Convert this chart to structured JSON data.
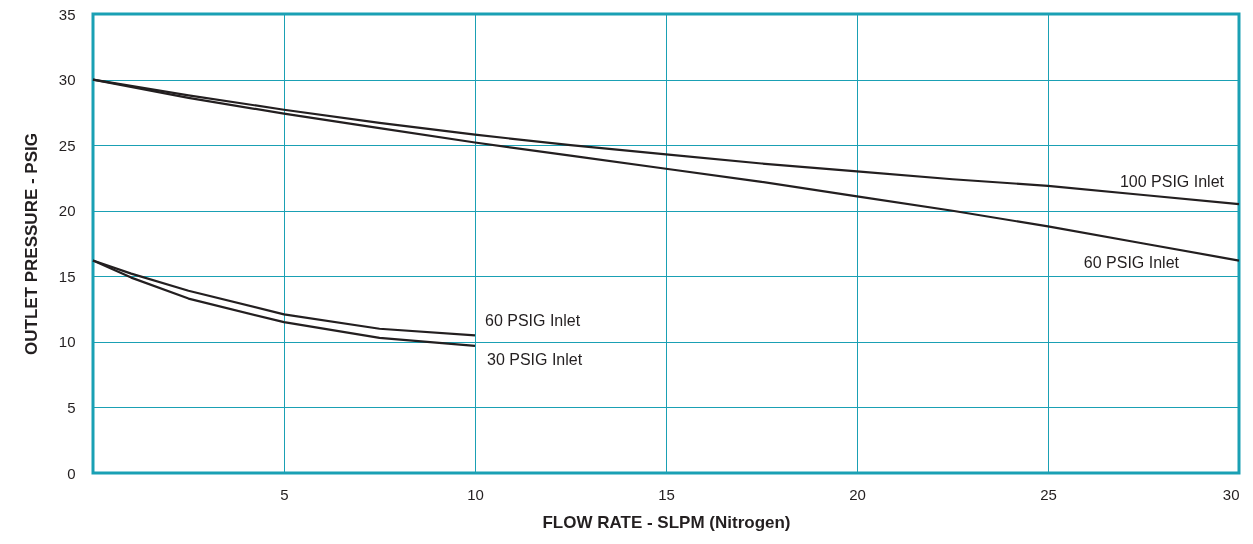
{
  "chart_data": {
    "type": "line",
    "xlabel": "FLOW RATE - SLPM (Nitrogen)",
    "ylabel": "OUTLET PRESSURE - PSIG",
    "xlim": [
      0,
      30
    ],
    "xticks": [
      {
        "value": 0,
        "label": null
      },
      5,
      10,
      15,
      20,
      25,
      30
    ],
    "ylim": [
      0,
      35
    ],
    "yticks": [
      0,
      5,
      10,
      15,
      20,
      25,
      30,
      35
    ],
    "grid": true,
    "legend": false,
    "marker": "none",
    "line_style": "solid",
    "series": [
      {
        "name": "100 PSIG Inlet",
        "color": "#231f20",
        "x": [
          0,
          2.5,
          5,
          7.5,
          10,
          12.5,
          15,
          17.5,
          20,
          22.5,
          25,
          27.5,
          30
        ],
        "values": [
          30,
          28.8,
          27.7,
          26.7,
          25.8,
          25.0,
          24.3,
          23.6,
          23.0,
          22.4,
          21.9,
          21.2,
          20.5
        ]
      },
      {
        "name": "60 PSIG Inlet",
        "color": "#231f20",
        "x": [
          0,
          2.5,
          5,
          7.5,
          10,
          12.5,
          15,
          17.5,
          20,
          22.5,
          25,
          27.5,
          30
        ],
        "values": [
          30,
          28.6,
          27.4,
          26.3,
          25.2,
          24.2,
          23.2,
          22.2,
          21.1,
          20.0,
          18.8,
          17.5,
          16.2
        ]
      },
      {
        "name": "60 PSIG Inlet",
        "color": "#231f20",
        "x": [
          0,
          1,
          2.5,
          5,
          7.5,
          10
        ],
        "values": [
          16.2,
          15.2,
          13.9,
          12.1,
          11.0,
          10.5
        ]
      },
      {
        "name": "30 PSIG Inlet",
        "color": "#231f20",
        "x": [
          0,
          1,
          2.5,
          5,
          7.5,
          10
        ],
        "values": [
          16.2,
          14.9,
          13.3,
          11.5,
          10.3,
          9.7
        ]
      }
    ]
  }
}
